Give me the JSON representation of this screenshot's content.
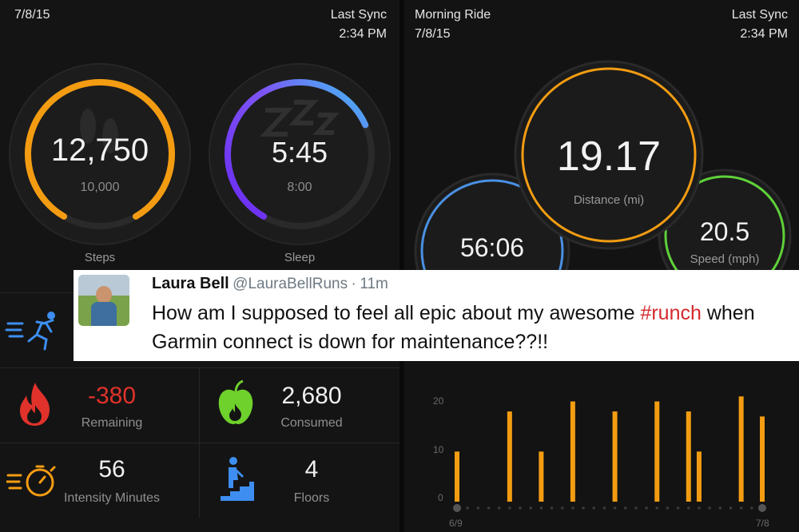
{
  "left": {
    "date": "7/8/15",
    "sync_label": "Last Sync",
    "sync_time": "2:34 PM",
    "steps": {
      "value": "12,750",
      "goal": "10,000",
      "label": "Steps",
      "progress": 1.0,
      "color": "#f39c12"
    },
    "sleep": {
      "value": "5:45",
      "goal": "8:00",
      "label": "Sleep",
      "progress": 0.72,
      "color": "#7b3cf0"
    },
    "calories_remaining": {
      "value": "-380",
      "label": "Remaining",
      "color": "#e0322b"
    },
    "calories_consumed": {
      "value": "2,680",
      "label": "Consumed"
    },
    "intensity": {
      "value": "56",
      "label": "Intensity Minutes"
    },
    "floors": {
      "value": "4",
      "label": "Floors"
    }
  },
  "right": {
    "activity_title": "Morning Ride",
    "date": "7/8/15",
    "sync_label": "Last Sync",
    "sync_time": "2:34 PM",
    "distance": {
      "value": "19.17",
      "label": "Distance (mi)",
      "color": "#f39c12"
    },
    "time": {
      "value": "56:06",
      "color": "#4a90e2"
    },
    "speed": {
      "value": "20.5",
      "label": "Speed (mph)",
      "color": "#5fd13a"
    }
  },
  "tweet": {
    "name": "Laura Bell",
    "handle": "@LauraBellRuns",
    "age": "11m",
    "text_before": "How am I supposed to feel all epic about my awesome ",
    "hashtag": "#runch",
    "text_after": " when Garmin connect is down for maintenance??!!"
  },
  "icons": {
    "runner": "runner-icon",
    "flame": "flame-icon",
    "apple": "apple-icon",
    "stopwatch": "stopwatch-icon",
    "stairs": "stairs-icon"
  },
  "chart_data": {
    "type": "bar",
    "categories": [
      "6/9",
      "",
      "",
      "",
      "",
      "",
      "",
      "",
      "",
      "",
      "",
      "",
      "",
      "",
      "",
      "",
      "",
      "",
      "",
      "",
      "",
      "",
      "",
      "",
      "",
      "",
      "",
      "",
      "",
      "7/8"
    ],
    "values": [
      10,
      0,
      0,
      0,
      0,
      18,
      0,
      0,
      10,
      0,
      0,
      20,
      0,
      0,
      0,
      18,
      0,
      0,
      0,
      20,
      0,
      0,
      18,
      10,
      0,
      0,
      0,
      21,
      0,
      17
    ],
    "ylim": [
      0,
      22
    ],
    "yticks": [
      "0",
      "10",
      "20"
    ],
    "xlabel_start": "6/9",
    "xlabel_end": "7/8",
    "color": "#f39c12",
    "grid": false
  }
}
